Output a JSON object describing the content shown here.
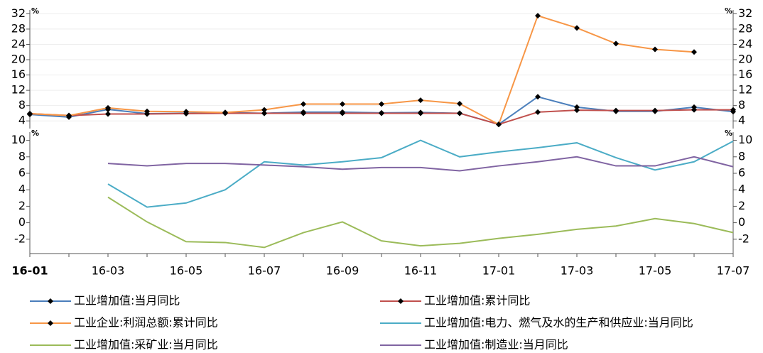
{
  "chart_data": [
    {
      "type": "line",
      "y_unit": "%",
      "ylim": [
        2,
        33
      ],
      "yticks": [
        4,
        8,
        12,
        16,
        20,
        24,
        28,
        32
      ],
      "grid": true,
      "marker": "diamond",
      "marker_color": "#000000",
      "series": [
        {
          "name": "工业增加值:当月同比",
          "color": "#4a7ebb",
          "values": [
            5.7,
            5.0,
            7.0,
            5.9,
            6.0,
            6.2,
            6.0,
            6.3,
            6.3,
            6.1,
            6.2,
            6.0,
            3.1,
            10.3,
            7.6,
            6.5,
            6.5,
            7.6,
            6.4
          ]
        },
        {
          "name": "工业增加值:累计同比",
          "color": "#c0504d",
          "values": [
            5.9,
            5.4,
            5.8,
            5.8,
            5.9,
            6.0,
            6.0,
            6.0,
            6.0,
            6.0,
            6.0,
            6.0,
            3.1,
            6.3,
            6.8,
            6.7,
            6.7,
            6.9,
            6.9
          ]
        },
        {
          "name": "工业企业:利润总额:累计同比",
          "color": "#f79646",
          "values": [
            5.9,
            5.4,
            7.4,
            6.5,
            6.4,
            6.2,
            6.9,
            8.4,
            8.4,
            8.4,
            9.4,
            8.5,
            3.1,
            31.5,
            28.3,
            24.2,
            22.7,
            22.0,
            null
          ]
        }
      ]
    },
    {
      "type": "line",
      "y_unit": "%",
      "ylim": [
        -4,
        11
      ],
      "yticks": [
        -2,
        0,
        2,
        4,
        6,
        8,
        10
      ],
      "grid": false,
      "categories": [
        "16-01",
        null,
        "16-03",
        null,
        "16-05",
        null,
        "16-07",
        null,
        "16-09",
        null,
        "16-11",
        null,
        "17-01",
        null,
        "17-03",
        null,
        "17-05",
        null,
        "17-07"
      ],
      "series": [
        {
          "name": "工业增加值:电力、燃气及水的生产和供应业:当月同比",
          "color": "#4bacc6",
          "values": [
            null,
            null,
            4.7,
            1.9,
            2.4,
            4.0,
            7.4,
            7.0,
            7.4,
            7.9,
            10.0,
            8.0,
            8.6,
            9.1,
            9.7,
            7.9,
            6.4,
            7.4,
            9.9
          ]
        },
        {
          "name": "工业增加值:采矿业:当月同比",
          "color": "#9bbb59",
          "values": [
            null,
            null,
            3.1,
            0.1,
            -2.3,
            -2.4,
            -3.0,
            -1.2,
            0.1,
            -2.2,
            -2.8,
            -2.5,
            -1.9,
            -1.4,
            -0.8,
            -0.4,
            0.5,
            -0.1,
            -1.2
          ]
        },
        {
          "name": "工业增加值:制造业:当月同比",
          "color": "#8064a2",
          "values": [
            null,
            null,
            7.2,
            6.9,
            7.2,
            7.2,
            7.0,
            6.8,
            6.5,
            6.7,
            6.7,
            6.3,
            6.9,
            7.4,
            8.0,
            6.9,
            6.9,
            8.0,
            6.8
          ]
        }
      ]
    }
  ]
}
